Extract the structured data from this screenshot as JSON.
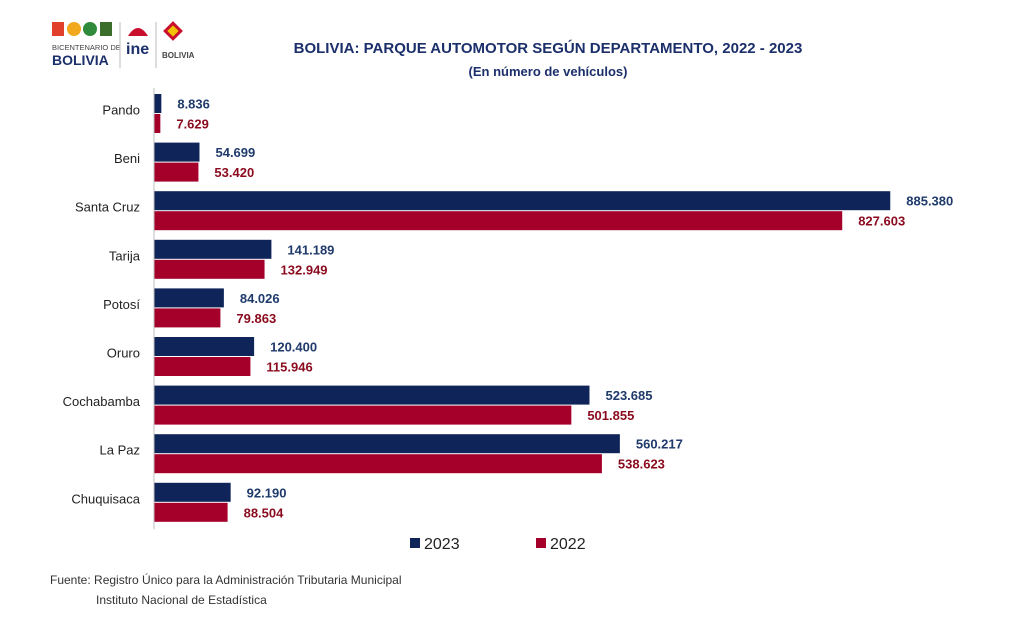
{
  "logos": {
    "bicentenario_text": "BICENTENARIO DE",
    "bicentenario_country": "BOLIVIA",
    "ine_text": "ine",
    "estado_text": "BOLIVIA"
  },
  "chart_data": {
    "type": "bar",
    "orientation": "horizontal",
    "title": "BOLIVIA: PARQUE AUTOMOTOR SEGÚN DEPARTAMENTO, 2022 - 2023",
    "subtitle": "(En número de vehículos)",
    "categories": [
      "Pando",
      "Beni",
      "Santa Cruz",
      "Tarija",
      "Potosí",
      "Oruro",
      "Cochabamba",
      "La Paz",
      "Chuquisaca"
    ],
    "series": [
      {
        "name": "2023",
        "color": "#0f2559",
        "values": [
          8836,
          54699,
          885380,
          141189,
          84026,
          120400,
          523685,
          560217,
          92190
        ],
        "labels": [
          "8.836",
          "54.699",
          "885.380",
          "141.189",
          "84.026",
          "120.400",
          "523.685",
          "560.217",
          "92.190"
        ],
        "label_color": "#1f3a6b"
      },
      {
        "name": "2022",
        "color": "#a5002a",
        "values": [
          7629,
          53420,
          827603,
          132949,
          79863,
          115946,
          501855,
          538623,
          88504
        ],
        "labels": [
          "7.629",
          "53.420",
          "827.603",
          "132.949",
          "79.863",
          "115.946",
          "501.855",
          "538.623",
          "88.504"
        ],
        "label_color": "#8b0b1e"
      }
    ],
    "xlim": [
      0,
      950000
    ],
    "grid": false,
    "legend_position": "bottom"
  },
  "source": {
    "line1": "Fuente: Registro Único para la Administración Tributaria Municipal",
    "line2": "Instituto Nacional de Estadística"
  }
}
